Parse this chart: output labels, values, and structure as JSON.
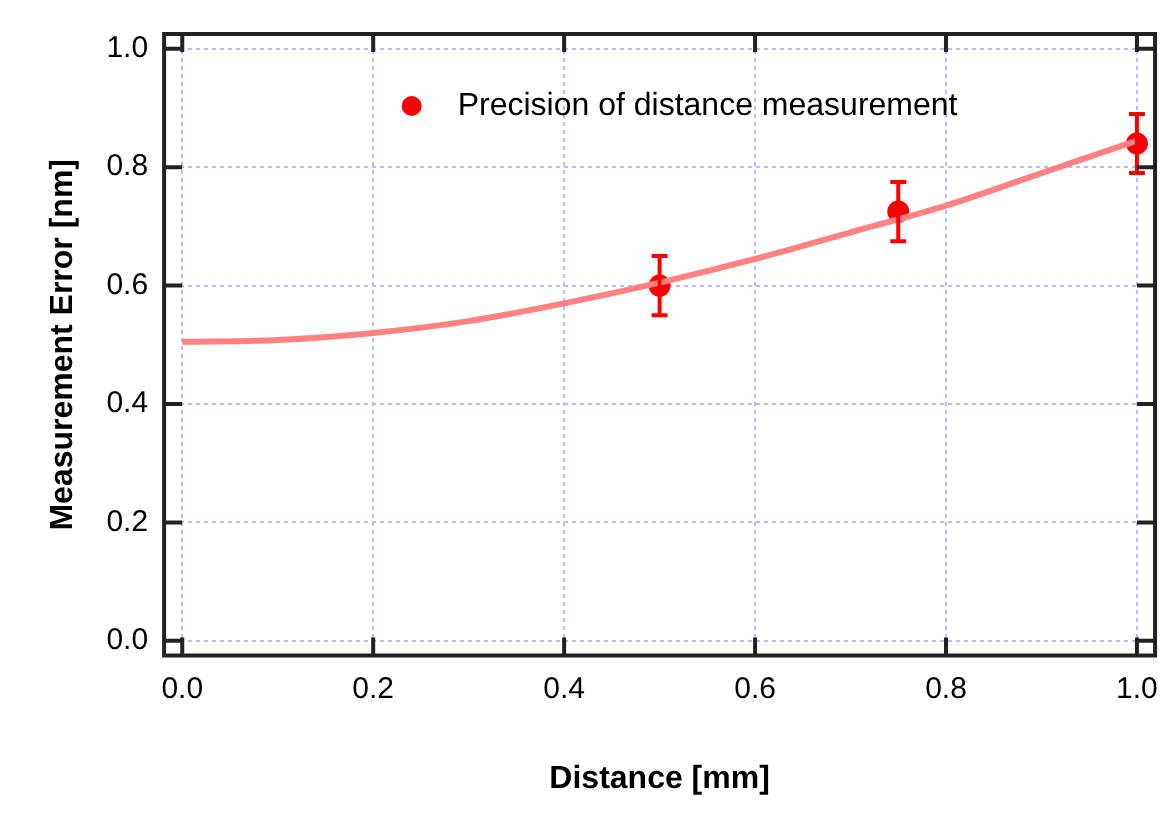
{
  "chart_data": {
    "type": "scatter",
    "xlabel": "Distance [mm]",
    "ylabel": "Measurement Error [nm]",
    "xlim": [
      -0.019,
      1.019
    ],
    "ylim": [
      -0.025,
      1.025
    ],
    "xticks": [
      {
        "value": 0,
        "label": "0.0"
      },
      0.2,
      0.4,
      0.6,
      0.8,
      {
        "value": 1,
        "label": "1.0"
      }
    ],
    "yticks": [
      {
        "value": 0,
        "label": "0.0"
      },
      0.2,
      0.4,
      0.6,
      0.8,
      {
        "value": 1,
        "label": "1.0"
      }
    ],
    "grid": true,
    "legend": "top",
    "marker": "circle",
    "series": [
      {
        "type": "line",
        "color": "#ff8080",
        "marker": "none",
        "x": [
          0,
          0.1,
          0.2,
          0.3,
          0.4,
          0.5,
          0.6,
          0.7,
          0.8,
          0.9,
          1.0
        ],
        "values": [
          0.505,
          0.508,
          0.52,
          0.54,
          0.57,
          0.605,
          0.645,
          0.69,
          0.735,
          0.79,
          0.845
        ]
      },
      {
        "name": "Precision of distance measurement",
        "color": "#ff0000",
        "x": [
          0.5,
          0.75,
          1.0
        ],
        "values": [
          0.6,
          0.725,
          0.84
        ],
        "errors": [
          0.05,
          0.05,
          0.05
        ]
      }
    ]
  }
}
